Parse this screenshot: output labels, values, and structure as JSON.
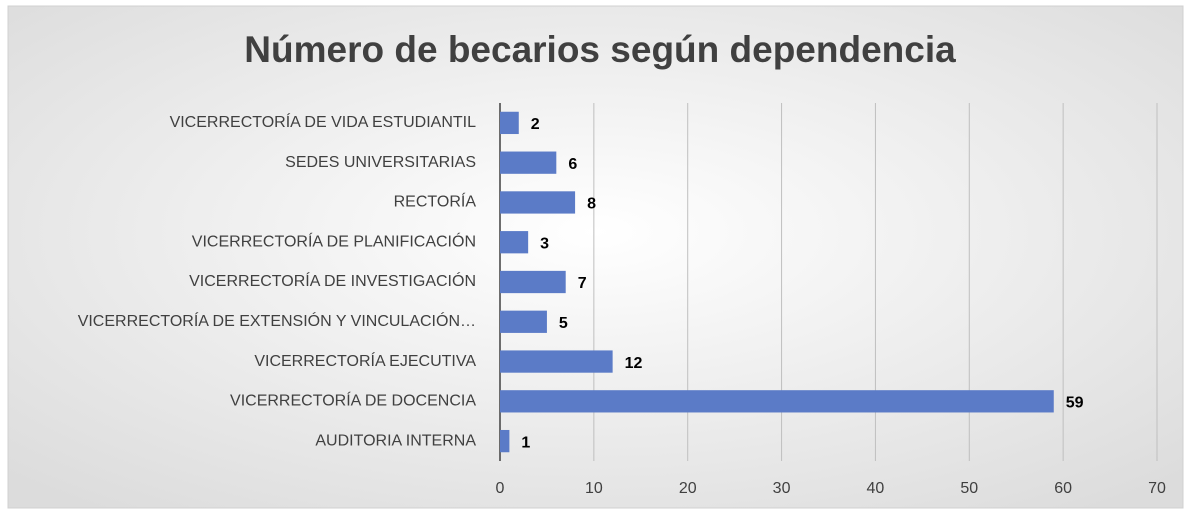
{
  "chart_data": {
    "type": "bar",
    "orientation": "horizontal",
    "title": "Número de becarios según dependencia",
    "categories": [
      "VICERRECTORÍA DE VIDA ESTUDIANTIL",
      "SEDES UNIVERSITARIAS",
      "RECTORÍA",
      "VICERRECTORÍA DE PLANIFICACIÓN",
      "VICERRECTORÍA DE INVESTIGACIÓN",
      "VICERRECTORÍA DE EXTENSIÓN Y VINCULACIÓN…",
      "VICERRECTORÍA EJECUTIVA",
      "VICERRECTORÍA DE DOCENCIA",
      "AUDITORIA INTERNA"
    ],
    "values": [
      2,
      6,
      8,
      3,
      7,
      5,
      12,
      59,
      1
    ],
    "color": "#5b7bc7",
    "xlim": [
      0,
      70
    ],
    "xticks": [
      0,
      10,
      20,
      30,
      40,
      50,
      60,
      70
    ],
    "grid": true
  }
}
